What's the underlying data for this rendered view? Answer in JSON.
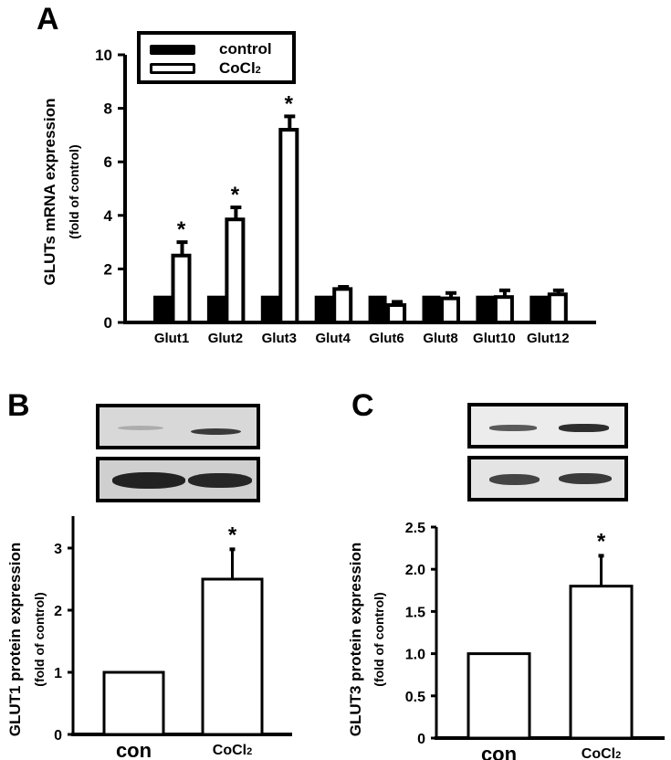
{
  "panels": {
    "A": {
      "letter": "A"
    },
    "B": {
      "letter": "B"
    },
    "C": {
      "letter": "C"
    }
  },
  "legend": {
    "items": [
      {
        "label": "control",
        "fill": "#000000"
      },
      {
        "label": "CoCl2",
        "label_main": "CoCl",
        "label_sub": "2",
        "fill": "#ffffff"
      }
    ]
  },
  "chart_data": [
    {
      "panel": "A",
      "type": "bar",
      "title": "",
      "ylabel": "GLUTs mRNA expression",
      "ylabel_sub": "(fold of control)",
      "xlabel": "",
      "ylim": [
        0,
        10
      ],
      "yticks": [
        0,
        2,
        4,
        6,
        8,
        10
      ],
      "grid": false,
      "legend_position": "top-left",
      "categories": [
        "Glut1",
        "Glut2",
        "Glut3",
        "Glut4",
        "Glut6",
        "Glut8",
        "Glut10",
        "Glut12"
      ],
      "series": [
        {
          "name": "control",
          "color": "#000000",
          "values": [
            1.0,
            1.0,
            1.0,
            1.0,
            1.0,
            1.0,
            1.0,
            1.0
          ],
          "errors": [
            0,
            0,
            0,
            0,
            0,
            0,
            0,
            0
          ]
        },
        {
          "name": "CoCl2",
          "color": "#ffffff",
          "values": [
            2.5,
            3.85,
            7.2,
            1.25,
            0.65,
            0.9,
            0.95,
            1.05
          ],
          "errors": [
            0.5,
            0.45,
            0.5,
            0.08,
            0.12,
            0.2,
            0.25,
            0.15
          ]
        }
      ],
      "significance": [
        "*",
        "*",
        "*",
        "",
        "",
        "",
        "",
        ""
      ]
    },
    {
      "panel": "B",
      "type": "bar",
      "title": "",
      "ylabel": "GLUT1 protein expression",
      "ylabel_sub": "(fold of control)",
      "xlabel": "",
      "ylim": [
        0,
        3.5
      ],
      "yticks": [
        0,
        1,
        2,
        3
      ],
      "grid": false,
      "categories": [
        "con",
        "CoCl2"
      ],
      "values": [
        1.0,
        2.5
      ],
      "errors": [
        0,
        0.48
      ],
      "significance": [
        "",
        "*"
      ]
    },
    {
      "panel": "C",
      "type": "bar",
      "title": "",
      "ylabel": "GLUT3 protein expression",
      "ylabel_sub": "(fold of control)",
      "xlabel": "",
      "ylim": [
        0,
        2.5
      ],
      "yticks": [
        "0",
        "0.5",
        "1.0",
        "1.5",
        "2.0",
        "2.5"
      ],
      "grid": false,
      "categories": [
        "con",
        "CoCl2"
      ],
      "values": [
        1.0,
        1.8
      ],
      "errors": [
        0,
        0.36
      ],
      "significance": [
        "",
        "*"
      ]
    }
  ],
  "labels": {
    "A": {
      "ytick_labels": [
        "0",
        "2",
        "4",
        "6",
        "8",
        "10"
      ],
      "xtick_labels": [
        "Glut1",
        "Glut2",
        "Glut3",
        "Glut4",
        "Glut6",
        "Glut8",
        "Glut10",
        "Glut12"
      ],
      "ylabel": "GLUTs mRNA expression",
      "ylabel_sub": "(fold of control)",
      "star": "*"
    },
    "B": {
      "ytick_labels": [
        "0",
        "1",
        "2",
        "3"
      ],
      "x_con": "con",
      "x_co": "CoCl",
      "x_co_sub": "2",
      "ylabel": "GLUT1 protein expression",
      "ylabel_sub": "(fold of control)",
      "star": "*"
    },
    "C": {
      "ytick_labels": [
        "0",
        "0.5",
        "1.0",
        "1.5",
        "2.0",
        "2.5"
      ],
      "x_con": "con",
      "x_co": "CoCl",
      "x_co_sub": "2",
      "ylabel": "GLUT3 protein expression",
      "ylabel_sub": "(fold of control)",
      "star": "*"
    }
  },
  "blots": {
    "B": {
      "background": "#d6d6d6",
      "top_band_intensity": [
        "faint",
        "medium"
      ],
      "bottom_band_intensity": [
        "strong",
        "strong"
      ]
    },
    "C": {
      "background": "#e2e2e2",
      "top_band_intensity": [
        "medium",
        "strong"
      ],
      "bottom_band_intensity": [
        "strong",
        "strong"
      ]
    }
  }
}
